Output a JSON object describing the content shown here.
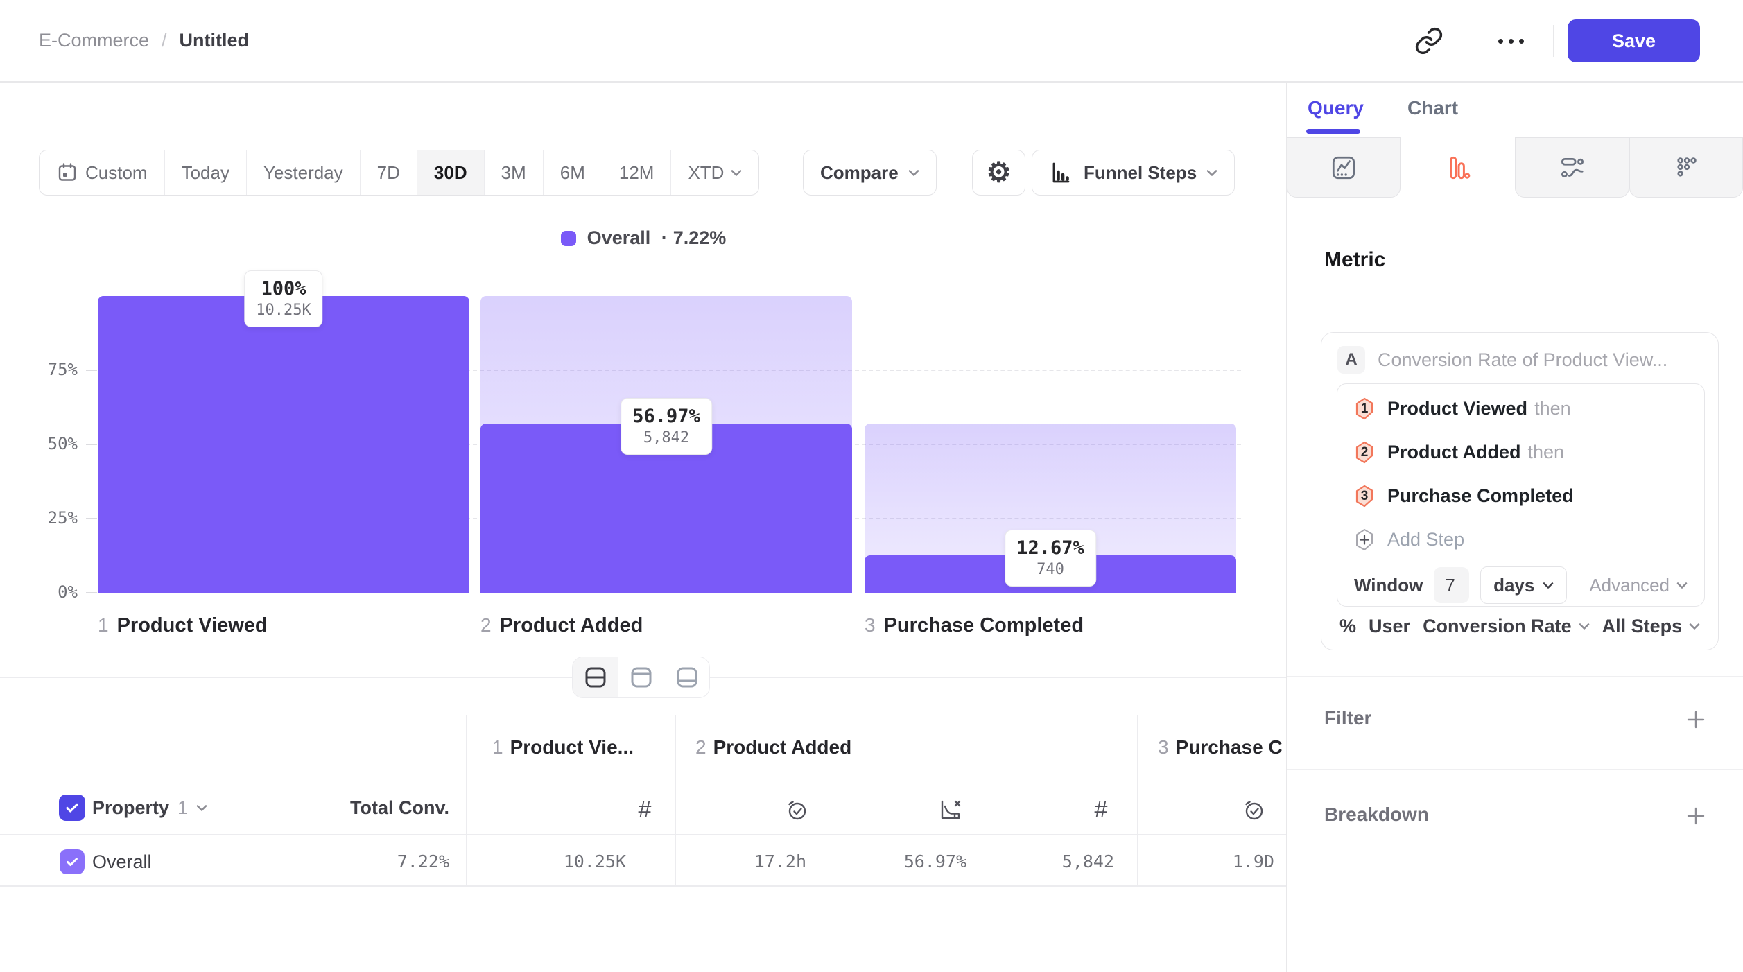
{
  "header": {
    "breadcrumb": {
      "parent": "E-Commerce",
      "separator": "/",
      "current": "Untitled"
    },
    "save_label": "Save"
  },
  "toolbar": {
    "date_ranges": [
      "Custom",
      "Today",
      "Yesterday",
      "7D",
      "30D",
      "3M",
      "6M",
      "12M",
      "XTD"
    ],
    "selected_range": "30D",
    "compare_label": "Compare",
    "view_label": "Funnel Steps"
  },
  "legend": {
    "label": "Overall",
    "separator": "·",
    "value": "7.22%"
  },
  "chart_data": {
    "type": "funnel",
    "title": "Overall conversion funnel",
    "y_ticks": [
      "75%",
      "50%",
      "25%",
      "0%"
    ],
    "ylim": [
      0,
      100
    ],
    "grid": "dashed-horizontal",
    "bar_color": "#7A5AF8",
    "steps": [
      {
        "num": "1",
        "label": "Product Viewed",
        "pct": 100,
        "pct_label": "100%",
        "count": 10250,
        "count_label": "10.25K"
      },
      {
        "num": "2",
        "label": "Product Added",
        "pct": 56.97,
        "pct_label": "56.97%",
        "count": 5842,
        "count_label": "5,842"
      },
      {
        "num": "3",
        "label": "Purchase Completed",
        "pct": 12.67,
        "pct_label": "12.67%",
        "count": 740,
        "count_label": "740"
      }
    ]
  },
  "table": {
    "property_label": "Property",
    "property_num": "1",
    "total_conv_label": "Total Conv.",
    "columns": [
      {
        "num": "1",
        "label": "Product Vie..."
      },
      {
        "num": "2",
        "label": "Product Added"
      },
      {
        "num": "3",
        "label": "Purchase C"
      }
    ],
    "row": {
      "label": "Overall",
      "total_conv": "7.22%",
      "values": [
        "10.25K",
        "17.2h",
        "56.97%",
        "5,842",
        "1.9D"
      ]
    }
  },
  "panel": {
    "tabs": [
      "Query",
      "Chart"
    ],
    "active_tab": "Query",
    "chart_types": [
      "metrics",
      "funnel",
      "flow",
      "retention"
    ],
    "selected_chart_type": "funnel",
    "metric_heading": "Metric",
    "series_badge": "A",
    "series_title": "Conversion Rate of Product View...",
    "steps": [
      {
        "num": "1",
        "label": "Product Viewed",
        "suffix": "then"
      },
      {
        "num": "2",
        "label": "Product Added",
        "suffix": "then"
      },
      {
        "num": "3",
        "label": "Purchase Completed",
        "suffix": ""
      }
    ],
    "add_step_label": "Add Step",
    "window": {
      "label": "Window",
      "value": "7",
      "unit": "days",
      "advanced_label": "Advanced"
    },
    "measure": {
      "pct_icon": "%",
      "entity": "User",
      "metric": "Conversion Rate",
      "scope": "All Steps"
    },
    "filter_heading": "Filter",
    "breakdown_heading": "Breakdown"
  },
  "icons": {
    "gear": "⚙",
    "hash": "#",
    "accent_color": "#4F46E5",
    "funnel_icon_color": "#F97157"
  }
}
